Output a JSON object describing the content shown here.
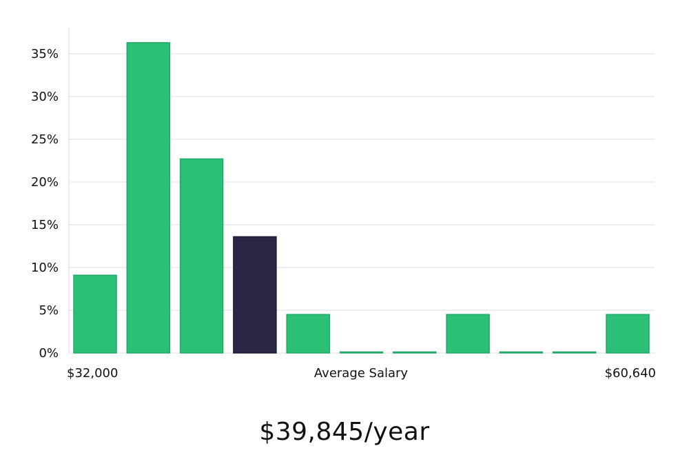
{
  "colors": {
    "bar": "#2bbf78",
    "bar_edge": "#21a866",
    "highlight": "#292646",
    "highlight_edge": "#1b1938",
    "grid": "#dcdcdc",
    "axis": "#d9d9d9"
  },
  "chart_data": {
    "type": "bar",
    "title": "",
    "xlabel": "Average Salary",
    "ylabel": "",
    "x_min_label": "$32,000",
    "x_max_label": "$60,640",
    "ylim": [
      0,
      38
    ],
    "yticks": [
      0,
      5,
      10,
      15,
      20,
      25,
      30,
      35
    ],
    "ytick_labels": [
      "0%",
      "5%",
      "10%",
      "15%",
      "20%",
      "25%",
      "30%",
      "35%"
    ],
    "values": [
      9.1,
      36.3,
      22.7,
      13.6,
      4.5,
      0,
      0,
      4.5,
      0,
      0,
      4.5
    ],
    "highlight_index": 3
  },
  "salary": {
    "label": "$39,845/year"
  }
}
